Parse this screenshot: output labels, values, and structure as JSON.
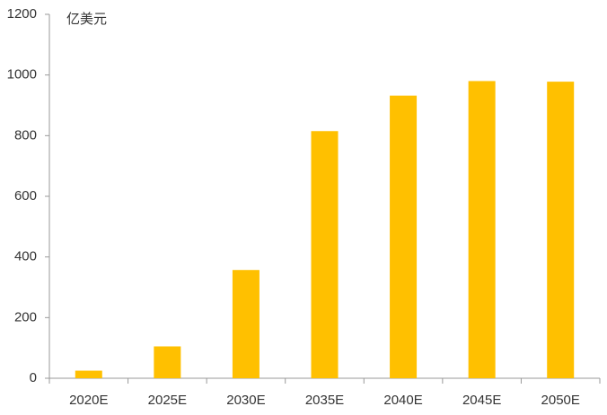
{
  "chart_data": {
    "type": "bar",
    "unit": "亿美元",
    "categories": [
      "2020E",
      "2025E",
      "2030E",
      "2035E",
      "2040E",
      "2045E",
      "2050E"
    ],
    "values": [
      25,
      105,
      357,
      815,
      932,
      980,
      978
    ],
    "color": "#ffc000",
    "ylim": [
      0,
      1200
    ],
    "yticks": [
      0,
      200,
      400,
      600,
      800,
      1000,
      1200
    ],
    "grid": false
  }
}
